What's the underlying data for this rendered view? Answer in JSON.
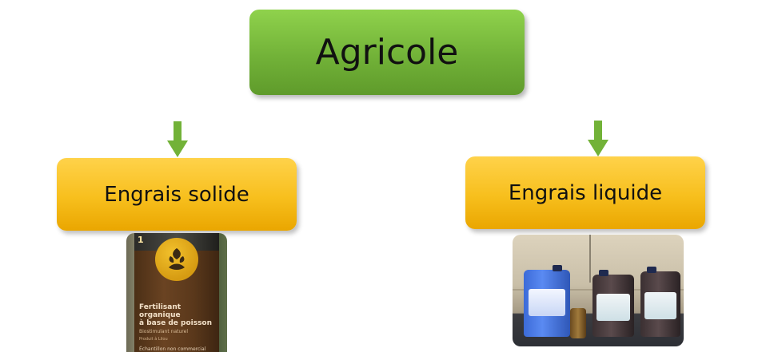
{
  "diagram": {
    "root": {
      "label": "Agricole",
      "color": "#7bc143"
    },
    "children": [
      {
        "label": "Engrais solide",
        "color": "#f6bd1d"
      },
      {
        "label": "Engrais liquide",
        "color": "#f6bd1d"
      }
    ],
    "arrow_color": "#72b238"
  },
  "photos": {
    "solid": {
      "number_tag": "1",
      "label_title_line1": "Fertilisant organique",
      "label_title_line2": "à base de poisson",
      "label_subtitle": "Biostimulant naturel",
      "label_small": "Produit à Lilou",
      "label_bottom": "Échantillon non commercial"
    }
  }
}
